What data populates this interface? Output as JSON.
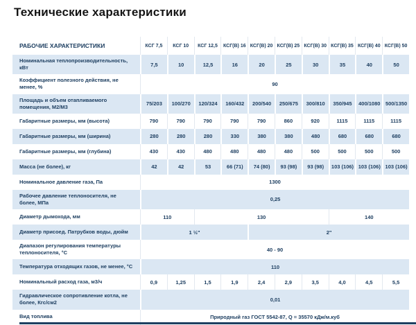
{
  "page_title": "Технические характеристики",
  "colors": {
    "striped_row_background": "#dbe7f3",
    "table_text": "#1e3f61",
    "divider": "#e2e8ef",
    "bottom_bar": "#1e3f61"
  },
  "table": {
    "header_label": "РАБОЧИЕ ХАРАКТЕРИСТИКИ",
    "columns": [
      "КСГ 7,5",
      "КСГ 10",
      "КСГ 12,5",
      "КСГ(В) 16",
      "КСГ(В) 20",
      "КСГ(В) 25",
      "КСГ(В) 30",
      "КСГ(В) 35",
      "КСГ(В) 40",
      "КСГ(В) 50"
    ],
    "rows": [
      {
        "label": "Номинальная теплопроизводительность, кВт",
        "cells": [
          "7,5",
          "10",
          "12,5",
          "16",
          "20",
          "25",
          "30",
          "35",
          "40",
          "50"
        ]
      },
      {
        "label": "Коэффициент полезного действия, не менее, %",
        "cells": [
          {
            "text": "90",
            "span": 10
          }
        ]
      },
      {
        "label": "Площадь и объем отапливаемого помещения, М2/М3",
        "cells": [
          "75/203",
          "100/270",
          "120/324",
          "160/432",
          "200/540",
          "250/675",
          "300/810",
          "350/945",
          "400/1080",
          "500/1350"
        ]
      },
      {
        "label": "Габаритные размеры, мм (высота)",
        "cells": [
          "790",
          "790",
          "790",
          "790",
          "790",
          "860",
          "920",
          "1115",
          "1115",
          "1115"
        ]
      },
      {
        "label": "Габаритные размеры, мм (ширина)",
        "cells": [
          "280",
          "280",
          "280",
          "330",
          "380",
          "380",
          "480",
          "680",
          "680",
          "680"
        ]
      },
      {
        "label": "Габаритные размеры, мм (глубина)",
        "cells": [
          "430",
          "430",
          "480",
          "480",
          "480",
          "480",
          "500",
          "500",
          "500",
          "500"
        ]
      },
      {
        "label": "Масса (не более), кг",
        "cells": [
          "42",
          "42",
          "53",
          "66 (71)",
          "74 (80)",
          "93 (98)",
          "93 (98)",
          "103 (106)",
          "103 (106)",
          "103 (106)"
        ]
      },
      {
        "label": "Номинальное давление газа, Па",
        "cells": [
          {
            "text": "1300",
            "span": 10
          }
        ]
      },
      {
        "label": "Рабочее давление теплоносителя, не более, МПа",
        "cells": [
          {
            "text": "0,25",
            "span": 10
          }
        ]
      },
      {
        "label": "Диаметр дымохода, мм",
        "cells": [
          {
            "text": "110",
            "span": 2
          },
          {
            "text": "130",
            "span": 5
          },
          {
            "text": "140",
            "span": 3
          }
        ]
      },
      {
        "label": "Диаметр присоед. Патрубков воды, дюйм",
        "cells": [
          {
            "text": "1 ½\"",
            "span": 4
          },
          {
            "text": "2\"",
            "span": 6
          }
        ]
      },
      {
        "label": "Диапазон регулирования температуры теплоносителя, °С",
        "cells": [
          {
            "text": "40 - 90",
            "span": 10
          }
        ]
      },
      {
        "label": "Температура отходящих газов, не менее, °С",
        "cells": [
          {
            "text": "110",
            "span": 10
          }
        ]
      },
      {
        "label": "Номинальный расход газа, м3/ч",
        "cells": [
          "0,9",
          "1,25",
          "1,5",
          "1,9",
          "2,4",
          "2,9",
          "3,5",
          "4,0",
          "4,5",
          "5,5"
        ]
      },
      {
        "label": "Гидравлическое сопротивление котла, не более, Кгс/см2",
        "cells": [
          {
            "text": "0,01",
            "span": 10
          }
        ]
      },
      {
        "label": "Вид топлива",
        "cells": [
          {
            "text": "Природный газ ГОСТ 5542-87, Q = 35570 кДж/м.куб",
            "span": 10
          }
        ]
      }
    ]
  }
}
